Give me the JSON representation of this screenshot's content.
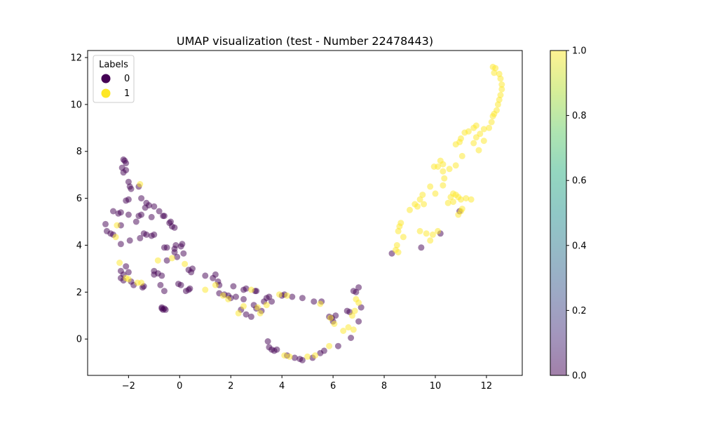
{
  "chart_data": {
    "type": "scatter",
    "title": "UMAP visualization (test - Number 22478443)",
    "xlabel": "",
    "ylabel": "",
    "xlim": [
      -3.6,
      13.4
    ],
    "ylim": [
      -1.55,
      12.3
    ],
    "x_ticks": [
      -2,
      0,
      2,
      4,
      6,
      8,
      10,
      12
    ],
    "x_tick_labels": [
      "−2",
      "0",
      "2",
      "4",
      "6",
      "8",
      "10",
      "12"
    ],
    "y_ticks": [
      0,
      2,
      4,
      6,
      8,
      10,
      12
    ],
    "y_tick_labels": [
      "0",
      "2",
      "4",
      "6",
      "8",
      "10",
      "12"
    ],
    "grid": false,
    "colormap": "viridis",
    "colorbar": {
      "range": [
        0.0,
        1.0
      ],
      "ticks": [
        0.0,
        0.2,
        0.4,
        0.6,
        0.8,
        1.0
      ],
      "tick_labels": [
        "0.0",
        "0.2",
        "0.4",
        "0.6",
        "0.8",
        "1.0"
      ]
    },
    "legend": {
      "title": "Labels",
      "placement": "top-left",
      "entries": [
        {
          "label": "0",
          "color": "#440154"
        },
        {
          "label": "1",
          "color": "#fde725"
        }
      ]
    },
    "series": [
      {
        "name": "0",
        "color": "#440154",
        "points": [
          [
            -2.2,
            7.65
          ],
          [
            -2.15,
            7.6
          ],
          [
            -2.1,
            7.5
          ],
          [
            -2.25,
            7.3
          ],
          [
            -2.1,
            7.2
          ],
          [
            -2.2,
            7.1
          ],
          [
            -2.0,
            6.7
          ],
          [
            -1.9,
            6.4
          ],
          [
            -1.95,
            6.5
          ],
          [
            -1.6,
            6.5
          ],
          [
            -1.5,
            6.0
          ],
          [
            -1.3,
            5.8
          ],
          [
            -1.2,
            5.7
          ],
          [
            -1.0,
            5.65
          ],
          [
            -1.35,
            5.6
          ],
          [
            -0.8,
            5.45
          ],
          [
            -0.65,
            5.25
          ],
          [
            -0.6,
            5.25
          ],
          [
            -1.1,
            5.2
          ],
          [
            -1.6,
            5.25
          ],
          [
            -1.5,
            5.3
          ],
          [
            -2.0,
            5.3
          ],
          [
            -2.3,
            5.4
          ],
          [
            -2.4,
            5.35
          ],
          [
            -2.6,
            5.45
          ],
          [
            -0.35,
            5.0
          ],
          [
            -0.4,
            4.95
          ],
          [
            -0.3,
            4.8
          ],
          [
            -0.2,
            4.75
          ],
          [
            -1.7,
            5.0
          ],
          [
            -2.1,
            5.9
          ],
          [
            -2.0,
            5.95
          ],
          [
            -2.9,
            4.9
          ],
          [
            -2.85,
            4.6
          ],
          [
            -2.7,
            4.5
          ],
          [
            -2.6,
            4.45
          ],
          [
            -2.3,
            4.85
          ],
          [
            -2.3,
            4.05
          ],
          [
            -1.95,
            4.2
          ],
          [
            -1.4,
            4.5
          ],
          [
            -1.3,
            4.45
          ],
          [
            -1.55,
            4.3
          ],
          [
            -1.1,
            4.4
          ],
          [
            -1.0,
            4.45
          ],
          [
            -0.6,
            3.9
          ],
          [
            -0.5,
            3.9
          ],
          [
            -0.15,
            4.0
          ],
          [
            -0.2,
            3.85
          ],
          [
            0.1,
            4.05
          ],
          [
            0.05,
            3.95
          ],
          [
            -0.2,
            3.7
          ],
          [
            0.15,
            3.65
          ],
          [
            -0.5,
            3.35
          ],
          [
            -0.1,
            3.5
          ],
          [
            -2.3,
            2.9
          ],
          [
            -2.1,
            3.1
          ],
          [
            -2.0,
            2.85
          ],
          [
            -2.2,
            2.75
          ],
          [
            -1.9,
            2.45
          ],
          [
            -1.8,
            2.3
          ],
          [
            -2.3,
            2.6
          ],
          [
            -2.2,
            2.5
          ],
          [
            -1.45,
            2.2
          ],
          [
            -1.4,
            2.25
          ],
          [
            -1.0,
            2.9
          ],
          [
            -1.0,
            2.75
          ],
          [
            -0.85,
            2.8
          ],
          [
            -0.7,
            2.7
          ],
          [
            -0.75,
            2.3
          ],
          [
            -0.6,
            2.05
          ],
          [
            -0.05,
            2.35
          ],
          [
            0.05,
            2.3
          ],
          [
            0.25,
            2.05
          ],
          [
            0.35,
            2.1
          ],
          [
            0.4,
            2.15
          ],
          [
            0.35,
            2.95
          ],
          [
            0.45,
            2.85
          ],
          [
            0.5,
            3.0
          ],
          [
            -0.7,
            1.3
          ],
          [
            -0.65,
            1.25
          ],
          [
            -0.6,
            1.3
          ],
          [
            -0.7,
            1.35
          ],
          [
            -0.55,
            1.25
          ],
          [
            1.0,
            2.7
          ],
          [
            1.3,
            2.6
          ],
          [
            1.4,
            2.75
          ],
          [
            1.5,
            2.45
          ],
          [
            1.55,
            2.3
          ],
          [
            1.55,
            1.95
          ],
          [
            1.75,
            1.9
          ],
          [
            1.9,
            1.85
          ],
          [
            2.0,
            1.75
          ],
          [
            2.1,
            2.25
          ],
          [
            2.5,
            2.1
          ],
          [
            2.6,
            2.15
          ],
          [
            2.2,
            1.8
          ],
          [
            2.5,
            1.7
          ],
          [
            2.4,
            1.25
          ],
          [
            2.6,
            1.05
          ],
          [
            2.8,
            0.95
          ],
          [
            2.9,
            1.45
          ],
          [
            3.0,
            1.3
          ],
          [
            3.2,
            1.2
          ],
          [
            2.95,
            2.05
          ],
          [
            3.0,
            2.05
          ],
          [
            3.3,
            1.6
          ],
          [
            3.4,
            1.75
          ],
          [
            3.6,
            1.6
          ],
          [
            3.5,
            1.8
          ],
          [
            4.0,
            1.85
          ],
          [
            4.1,
            1.9
          ],
          [
            4.4,
            1.8
          ],
          [
            4.8,
            1.75
          ],
          [
            3.45,
            -0.1
          ],
          [
            3.5,
            -0.35
          ],
          [
            3.6,
            -0.45
          ],
          [
            3.7,
            -0.5
          ],
          [
            3.8,
            -0.45
          ],
          [
            4.2,
            -0.7
          ],
          [
            4.5,
            -0.8
          ],
          [
            4.7,
            -0.85
          ],
          [
            4.8,
            -0.9
          ],
          [
            5.2,
            -0.8
          ],
          [
            5.5,
            -0.6
          ],
          [
            5.65,
            -0.5
          ],
          [
            5.25,
            1.6
          ],
          [
            5.55,
            1.6
          ],
          [
            5.85,
            0.95
          ],
          [
            5.95,
            0.9
          ],
          [
            6.1,
            1.0
          ],
          [
            6.0,
            0.75
          ],
          [
            6.2,
            -0.3
          ],
          [
            6.55,
            1.2
          ],
          [
            6.65,
            1.15
          ],
          [
            6.7,
            0.05
          ],
          [
            6.8,
            2.05
          ],
          [
            6.9,
            2.0
          ],
          [
            7.0,
            2.2
          ],
          [
            7.0,
            0.75
          ],
          [
            7.1,
            1.35
          ],
          [
            8.3,
            3.65
          ],
          [
            9.45,
            3.9
          ],
          [
            10.2,
            4.5
          ],
          [
            10.95,
            5.45
          ]
        ]
      },
      {
        "name": "1",
        "color": "#fde725",
        "points": [
          [
            12.25,
            11.6
          ],
          [
            12.35,
            11.55
          ],
          [
            12.3,
            11.35
          ],
          [
            12.5,
            11.3
          ],
          [
            12.55,
            11.1
          ],
          [
            12.6,
            10.85
          ],
          [
            12.6,
            10.65
          ],
          [
            12.55,
            10.4
          ],
          [
            12.5,
            10.2
          ],
          [
            12.45,
            10.0
          ],
          [
            12.4,
            9.75
          ],
          [
            12.3,
            9.6
          ],
          [
            12.25,
            9.5
          ],
          [
            12.2,
            9.25
          ],
          [
            12.1,
            9.0
          ],
          [
            11.9,
            8.95
          ],
          [
            11.75,
            8.75
          ],
          [
            11.6,
            8.6
          ],
          [
            11.5,
            8.35
          ],
          [
            11.9,
            8.45
          ],
          [
            11.7,
            8.05
          ],
          [
            11.5,
            9.0
          ],
          [
            11.6,
            9.1
          ],
          [
            11.3,
            8.85
          ],
          [
            11.0,
            8.55
          ],
          [
            11.15,
            8.8
          ],
          [
            10.95,
            8.4
          ],
          [
            10.8,
            8.3
          ],
          [
            11.05,
            7.8
          ],
          [
            10.8,
            7.4
          ],
          [
            10.55,
            7.25
          ],
          [
            10.3,
            7.45
          ],
          [
            10.1,
            7.35
          ],
          [
            10.2,
            7.6
          ],
          [
            10.3,
            7.15
          ],
          [
            9.95,
            7.35
          ],
          [
            10.35,
            6.85
          ],
          [
            10.3,
            6.55
          ],
          [
            10.0,
            6.2
          ],
          [
            9.8,
            6.5
          ],
          [
            9.5,
            6.15
          ],
          [
            9.4,
            5.95
          ],
          [
            9.55,
            5.75
          ],
          [
            9.3,
            5.65
          ],
          [
            9.2,
            5.75
          ],
          [
            9.0,
            5.5
          ],
          [
            8.65,
            4.95
          ],
          [
            8.6,
            4.8
          ],
          [
            8.55,
            4.6
          ],
          [
            8.75,
            4.35
          ],
          [
            9.4,
            4.6
          ],
          [
            9.65,
            4.5
          ],
          [
            9.9,
            4.45
          ],
          [
            9.8,
            4.2
          ],
          [
            10.1,
            4.6
          ],
          [
            8.5,
            4.0
          ],
          [
            8.45,
            3.8
          ],
          [
            8.55,
            3.7
          ],
          [
            10.7,
            6.2
          ],
          [
            10.8,
            6.15
          ],
          [
            10.9,
            6.05
          ],
          [
            11.0,
            5.95
          ],
          [
            11.2,
            6.0
          ],
          [
            11.4,
            5.95
          ],
          [
            11.05,
            5.55
          ],
          [
            10.9,
            5.3
          ],
          [
            11.0,
            5.45
          ],
          [
            10.7,
            5.85
          ],
          [
            10.6,
            6.05
          ],
          [
            10.5,
            5.8
          ],
          [
            -2.45,
            4.85
          ],
          [
            -2.5,
            4.35
          ],
          [
            -2.35,
            3.25
          ],
          [
            -2.1,
            2.6
          ],
          [
            -2.0,
            2.55
          ],
          [
            -1.65,
            2.4
          ],
          [
            -1.5,
            2.4
          ],
          [
            -1.55,
            6.6
          ],
          [
            -0.85,
            3.35
          ],
          [
            -0.3,
            3.45
          ],
          [
            0.2,
            3.2
          ],
          [
            1.0,
            2.1
          ],
          [
            1.4,
            2.3
          ],
          [
            1.7,
            1.85
          ],
          [
            1.9,
            1.7
          ],
          [
            2.5,
            1.4
          ],
          [
            2.3,
            1.1
          ],
          [
            2.8,
            2.1
          ],
          [
            3.05,
            1.35
          ],
          [
            3.15,
            1.1
          ],
          [
            3.4,
            1.45
          ],
          [
            3.9,
            1.9
          ],
          [
            4.2,
            1.85
          ],
          [
            4.1,
            -0.7
          ],
          [
            4.3,
            -0.75
          ],
          [
            5.0,
            -0.75
          ],
          [
            5.3,
            -0.7
          ],
          [
            5.85,
            -0.3
          ],
          [
            5.5,
            1.5
          ],
          [
            5.9,
            0.9
          ],
          [
            6.05,
            0.65
          ],
          [
            6.4,
            0.35
          ],
          [
            6.6,
            0.5
          ],
          [
            6.8,
            0.4
          ],
          [
            6.75,
            1.0
          ],
          [
            6.85,
            1.2
          ],
          [
            7.0,
            1.55
          ],
          [
            6.9,
            1.7
          ]
        ]
      }
    ]
  }
}
